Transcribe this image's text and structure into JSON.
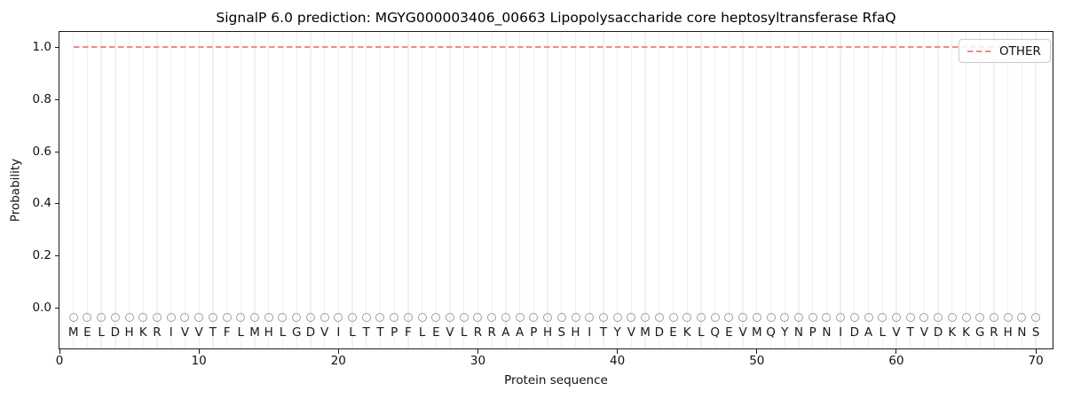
{
  "figure": {
    "title": "SignalP 6.0 prediction: MGYG000003406_00663 Lipopolysaccharide core heptosyltransferase RfaQ",
    "xlabel": "Protein sequence",
    "ylabel": "Probability",
    "legend_label": "OTHER"
  },
  "colors": {
    "other_line": "#ef8a8a",
    "marker_edge": "#9f9f9f",
    "gridline": "#f0f0f0",
    "spine": "#1a1a1a",
    "text": "#111111",
    "legend_border": "#cccccc"
  },
  "chart_data": {
    "type": "line",
    "title": "SignalP 6.0 prediction: MGYG000003406_00663 Lipopolysaccharide core heptosyltransferase RfaQ",
    "xlabel": "Protein sequence",
    "ylabel": "Probability",
    "xlim": [
      0,
      71.2
    ],
    "ylim": [
      -0.153,
      1.058
    ],
    "xticks": [
      0,
      10,
      20,
      30,
      40,
      50,
      60,
      70
    ],
    "yticks": [
      {
        "label": "0.0",
        "value": 0.0
      },
      {
        "label": "0.2",
        "value": 0.2
      },
      {
        "label": "0.4",
        "value": 0.4
      },
      {
        "label": "0.6",
        "value": 0.6
      },
      {
        "label": "0.8",
        "value": 0.8
      },
      {
        "label": "1.0",
        "value": 1.0
      }
    ],
    "grid": "vertical-line-per-residue",
    "legend": {
      "position": "upper right",
      "entries": [
        {
          "label": "OTHER",
          "color": "#ef8a8a",
          "linestyle": "dashed"
        }
      ]
    },
    "sequence": "MELDHKRIVVTFLMHLGDVILTTPFLEVLRRAAPHSHITYVMDEKLQEVMQYNPNIDALVTVDKKGRHNS",
    "residue_marker": {
      "shape": "open-circle",
      "y": -0.035
    },
    "residue_letter_y": -0.092,
    "series": [
      {
        "name": "OTHER",
        "color": "#ef8a8a",
        "linestyle": "dashed",
        "x": [
          1,
          2,
          3,
          4,
          5,
          6,
          7,
          8,
          9,
          10,
          11,
          12,
          13,
          14,
          15,
          16,
          17,
          18,
          19,
          20,
          21,
          22,
          23,
          24,
          25,
          26,
          27,
          28,
          29,
          30,
          31,
          32,
          33,
          34,
          35,
          36,
          37,
          38,
          39,
          40,
          41,
          42,
          43,
          44,
          45,
          46,
          47,
          48,
          49,
          50,
          51,
          52,
          53,
          54,
          55,
          56,
          57,
          58,
          59,
          60,
          61,
          62,
          63,
          64,
          65,
          66,
          67,
          68,
          69,
          70
        ],
        "y": [
          1.0,
          1.0,
          1.0,
          1.0,
          1.0,
          1.0,
          1.0,
          1.0,
          1.0,
          1.0,
          1.0,
          1.0,
          1.0,
          1.0,
          1.0,
          1.0,
          1.0,
          1.0,
          1.0,
          1.0,
          1.0,
          1.0,
          1.0,
          1.0,
          1.0,
          1.0,
          1.0,
          1.0,
          1.0,
          1.0,
          1.0,
          1.0,
          1.0,
          1.0,
          1.0,
          1.0,
          1.0,
          1.0,
          1.0,
          1.0,
          1.0,
          1.0,
          1.0,
          1.0,
          1.0,
          1.0,
          1.0,
          1.0,
          1.0,
          1.0,
          1.0,
          1.0,
          1.0,
          1.0,
          1.0,
          1.0,
          1.0,
          1.0,
          1.0,
          1.0,
          1.0,
          1.0,
          1.0,
          1.0,
          1.0,
          1.0,
          1.0,
          1.0,
          1.0,
          1.0
        ]
      }
    ]
  }
}
